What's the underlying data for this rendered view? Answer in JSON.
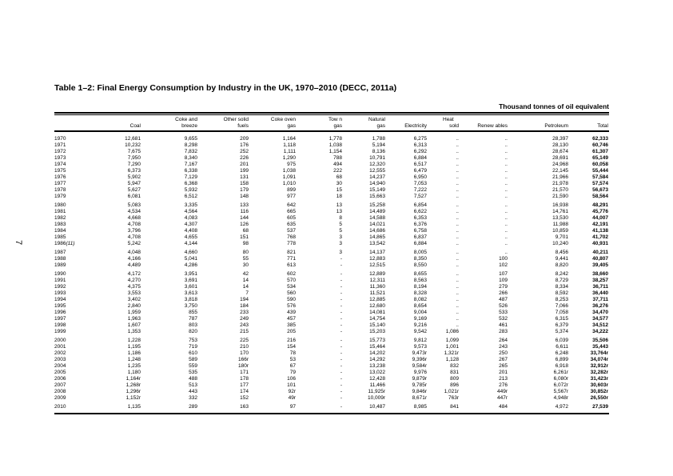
{
  "page": {
    "number": "7"
  },
  "table": {
    "title": "Table 1–2: Final Energy Consumption by Industry in the UK, 1970–2010 (DECC, 2011a)",
    "unit_label": "Thousand tonnes of oil equivalent",
    "header_line1": [
      "",
      "",
      "Coke and",
      "Other solid",
      "Coke oven",
      "Tow n",
      "Natural",
      "",
      "Heat",
      "",
      "",
      ""
    ],
    "header_line2": [
      "",
      "Coal",
      "breeze",
      "fuels",
      "gas",
      "gas",
      "gas",
      "Electricity",
      "sold",
      "Renew ables",
      "Petroleum",
      "Total"
    ],
    "rows": [
      {
        "year": "1970",
        "values": [
          "12,681",
          "9,655",
          "209",
          "1,164",
          "1,778",
          "1,788",
          "6,275",
          "..",
          "..",
          "28,397",
          "62,333"
        ]
      },
      {
        "year": "1971",
        "values": [
          "10,232",
          "8,298",
          "176",
          "1,118",
          "1,038",
          "5,194",
          "6,313",
          "..",
          "..",
          "28,130",
          "60,746"
        ]
      },
      {
        "year": "1972",
        "values": [
          "7,675",
          "7,832",
          "252",
          "1,111",
          "1,154",
          "8,136",
          "6,292",
          "..",
          "..",
          "28,674",
          "61,307"
        ]
      },
      {
        "year": "1973",
        "values": [
          "7,950",
          "8,340",
          "226",
          "1,290",
          "788",
          "10,791",
          "6,884",
          "..",
          "..",
          "28,691",
          "65,149"
        ]
      },
      {
        "year": "1974",
        "values": [
          "7,290",
          "7,167",
          "201",
          "975",
          "494",
          "12,320",
          "6,517",
          "..",
          "..",
          "24,968",
          "60,058"
        ]
      },
      {
        "year": "1975",
        "values": [
          "6,373",
          "6,338",
          "199",
          "1,038",
          "222",
          "12,555",
          "6,479",
          "..",
          "..",
          "22,145",
          "55,444"
        ]
      },
      {
        "year": "1976",
        "values": [
          "5,902",
          "7,129",
          "131",
          "1,091",
          "68",
          "14,237",
          "6,950",
          "..",
          "..",
          "21,966",
          "57,584"
        ]
      },
      {
        "year": "1977",
        "values": [
          "5,947",
          "6,368",
          "158",
          "1,010",
          "30",
          "14,940",
          "7,053",
          "..",
          "..",
          "21,978",
          "57,574"
        ]
      },
      {
        "year": "1978",
        "values": [
          "5,627",
          "5,932",
          "179",
          "899",
          "15",
          "15,149",
          "7,222",
          "..",
          "..",
          "21,570",
          "56,673"
        ]
      },
      {
        "year": "1979",
        "values": [
          "6,081",
          "6,512",
          "148",
          "977",
          "18",
          "15,663",
          "7,527",
          "..",
          "..",
          "21,590",
          "58,564"
        ]
      },
      {
        "year": "1980",
        "gap_before": true,
        "values": [
          "5,083",
          "3,335",
          "133",
          "642",
          "13",
          "15,258",
          "6,854",
          "..",
          "..",
          "16,938",
          "48,291"
        ]
      },
      {
        "year": "1981",
        "values": [
          "4,534",
          "4,564",
          "116",
          "665",
          "13",
          "14,489",
          "6,622",
          "..",
          "..",
          "14,761",
          "45,776"
        ]
      },
      {
        "year": "1982",
        "values": [
          "4,668",
          "4,083",
          "144",
          "605",
          "8",
          "14,588",
          "6,353",
          "..",
          "..",
          "13,530",
          "44,007"
        ]
      },
      {
        "year": "1983",
        "values": [
          "4,708",
          "4,307",
          "126",
          "635",
          "5",
          "14,021",
          "6,376",
          "..",
          "..",
          "11,988",
          "42,191"
        ]
      },
      {
        "year": "1984",
        "values": [
          "3,796",
          "4,408",
          "68",
          "537",
          "5",
          "14,686",
          "6,758",
          "..",
          "..",
          "10,859",
          "41,138"
        ]
      },
      {
        "year": "1985",
        "values": [
          "4,708",
          "4,655",
          "151",
          "768",
          "3",
          "14,865",
          "6,837",
          "..",
          "..",
          "9,701",
          "41,702"
        ]
      },
      {
        "year": "1986",
        "note": "(11)",
        "values": [
          "5,242",
          "4,144",
          "98",
          "778",
          "3",
          "13,542",
          "6,884",
          "..",
          "..",
          "10,240",
          "40,931"
        ]
      },
      {
        "year": "1987",
        "gap_before": true,
        "values": [
          "4,048",
          "4,660",
          "80",
          "821",
          "3",
          "14,137",
          "8,005",
          "..",
          "..",
          "8,456",
          "40,211"
        ]
      },
      {
        "year": "1988",
        "values": [
          "4,166",
          "5,041",
          "55",
          "771",
          "-",
          "12,883",
          "8,350",
          "..",
          "100",
          "9,441",
          "40,807"
        ]
      },
      {
        "year": "1989",
        "values": [
          "4,489",
          "4,286",
          "30",
          "613",
          "-",
          "12,515",
          "8,550",
          "..",
          "102",
          "8,820",
          "39,405"
        ]
      },
      {
        "year": "1990",
        "gap_before": true,
        "values": [
          "4,172",
          "3,951",
          "42",
          "602",
          "-",
          "12,889",
          "8,655",
          "..",
          "107",
          "8,242",
          "38,660"
        ]
      },
      {
        "year": "1991",
        "values": [
          "4,270",
          "3,691",
          "14",
          "570",
          "-",
          "12,311",
          "8,563",
          "..",
          "109",
          "8,729",
          "38,257"
        ]
      },
      {
        "year": "1992",
        "values": [
          "4,375",
          "3,601",
          "14",
          "534",
          "-",
          "11,360",
          "8,194",
          "..",
          "279",
          "8,334",
          "36,711"
        ]
      },
      {
        "year": "1993",
        "values": [
          "3,553",
          "3,613",
          "7",
          "560",
          "-",
          "11,521",
          "8,328",
          "..",
          "266",
          "8,592",
          "36,440"
        ]
      },
      {
        "year": "1994",
        "values": [
          "3,402",
          "3,818",
          "194",
          "590",
          "-",
          "12,885",
          "8,082",
          "..",
          "487",
          "8,253",
          "37,711"
        ]
      },
      {
        "year": "1995",
        "values": [
          "2,840",
          "3,750",
          "184",
          "576",
          "-",
          "12,680",
          "8,654",
          "..",
          "526",
          "7,066",
          "36,276"
        ]
      },
      {
        "year": "1996",
        "values": [
          "1,959",
          "855",
          "233",
          "439",
          "-",
          "14,081",
          "9,004",
          "..",
          "533",
          "7,058",
          "34,470"
        ]
      },
      {
        "year": "1997",
        "values": [
          "1,963",
          "787",
          "249",
          "457",
          "-",
          "14,754",
          "9,169",
          "..",
          "532",
          "6,315",
          "34,577"
        ]
      },
      {
        "year": "1998",
        "values": [
          "1,607",
          "803",
          "243",
          "385",
          "-",
          "15,140",
          "9,216",
          "..",
          "461",
          "6,379",
          "34,512"
        ]
      },
      {
        "year": "1999",
        "values": [
          "1,353",
          "820",
          "215",
          "205",
          "-",
          "15,203",
          "9,542",
          "1,086",
          "283",
          "5,374",
          "34,222"
        ]
      },
      {
        "year": "2000",
        "gap_before": true,
        "values": [
          "1,228",
          "753",
          "225",
          "216",
          "-",
          "15,773",
          "9,812",
          "1,099",
          "264",
          "6,039",
          "35,506"
        ]
      },
      {
        "year": "2001",
        "values": [
          "1,195",
          "719",
          "210",
          "154",
          "-",
          "15,464",
          "9,573",
          "1,001",
          "243",
          "6,611",
          "35,443"
        ]
      },
      {
        "year": "2002",
        "values": [
          "1,186",
          "610",
          "170",
          "78",
          "-",
          "14,202",
          "9,473r",
          "1,321r",
          "250",
          "6,248",
          "33,764r"
        ]
      },
      {
        "year": "2003",
        "values": [
          "1,248",
          "589",
          "166r",
          "53",
          "-",
          "14,292",
          "9,396r",
          "1,128",
          "267",
          "6,899",
          "34,074r"
        ]
      },
      {
        "year": "2004",
        "values": [
          "1,235",
          "559",
          "180r",
          "67",
          "-",
          "13,238",
          "9,584r",
          "832",
          "265",
          "6,918",
          "32,912r"
        ]
      },
      {
        "year": "2005",
        "values": [
          "1,180",
          "535",
          "171",
          "79",
          "-",
          "13,022",
          "9,976",
          "831",
          "201",
          "6,261r",
          "32,282r"
        ]
      },
      {
        "year": "2006",
        "values": [
          "1,164r",
          "488",
          "178",
          "106",
          "-",
          "12,428",
          "9,879r",
          "809",
          "213",
          "6,080r",
          "31,423r"
        ]
      },
      {
        "year": "2007",
        "values": [
          "1,268r",
          "513",
          "177",
          "101",
          "-",
          "11,466",
          "9,785r",
          "896",
          "276",
          "6,072r",
          "30,603r"
        ]
      },
      {
        "year": "2008",
        "values": [
          "1,296r",
          "443",
          "174",
          "92r",
          "-",
          "11,925r",
          "9,846r",
          "1,021r",
          "449r",
          "5,567r",
          "30,852r"
        ]
      },
      {
        "year": "2009",
        "values": [
          "1,152r",
          "332",
          "152",
          "49r",
          "-",
          "10,009r",
          "8,671r",
          "763r",
          "447r",
          "4,948r",
          "26,550r"
        ]
      },
      {
        "year": "2010",
        "gap_before": true,
        "values": [
          "1,135",
          "289",
          "163",
          "97",
          "-",
          "10,487",
          "8,985",
          "841",
          "484",
          "4,972",
          "27,539"
        ]
      }
    ]
  }
}
